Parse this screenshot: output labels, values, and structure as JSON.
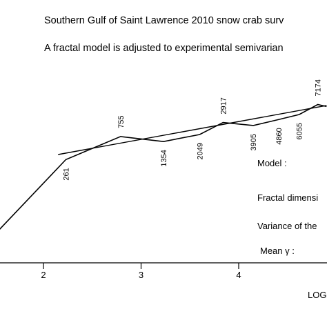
{
  "chart_data": {
    "type": "line",
    "title": "Southern Gulf of Saint Lawrence 2010 snow crab surv",
    "subtitle": "A fractal model is adjusted to experimental semivarian",
    "xlabel": "LOG",
    "x_ticks": [
      2,
      3,
      4
    ],
    "xlim": [
      1.55,
      4.9
    ],
    "ylim": [
      -0.6,
      1.6
    ],
    "series": [
      {
        "kind": "experimental",
        "x": [
          1.5,
          2.23,
          2.79,
          3.23,
          3.6,
          3.84,
          4.15,
          4.41,
          4.62,
          4.81,
          4.9
        ],
        "y": [
          0.0,
          0.75,
          0.98,
          0.93,
          1.0,
          1.12,
          1.09,
          1.15,
          1.2,
          1.3,
          1.28
        ],
        "pair_counts": [
          "",
          "261",
          "755",
          "1354",
          "2049",
          "2917",
          "3905",
          "4860",
          "6055",
          "7174",
          ""
        ]
      },
      {
        "kind": "fractal-model",
        "x": [
          2.15,
          4.9
        ],
        "y": [
          0.8,
          1.29
        ]
      }
    ],
    "grid": false
  },
  "panel": {
    "model_label": "Model :",
    "fractal_label": "Fractal dimensi",
    "variance_label": "Variance of the",
    "mean_label": "Mean γ :"
  }
}
